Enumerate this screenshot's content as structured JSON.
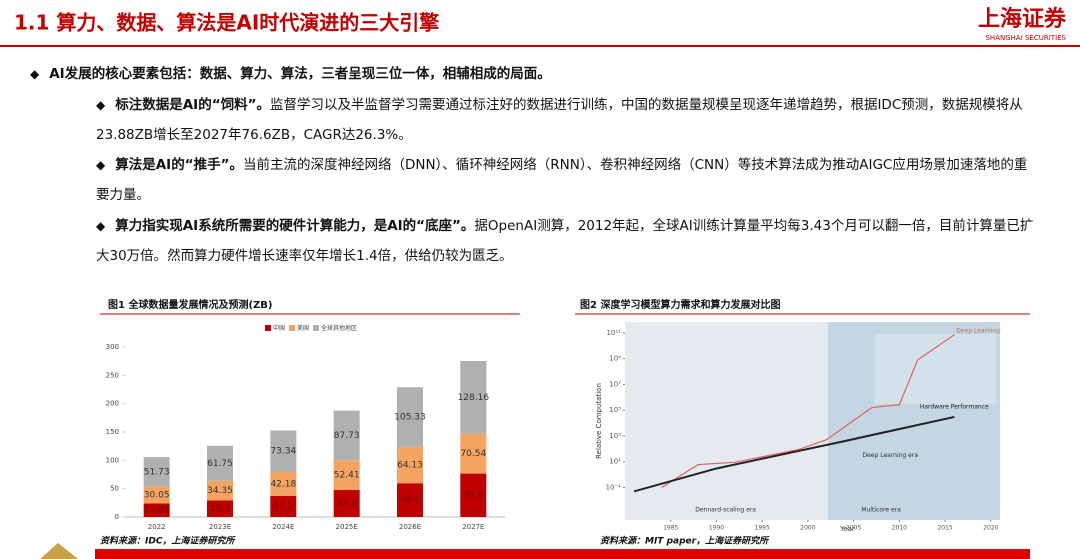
{
  "header": {
    "title": "1.1 算力、数据、算法是AI时代演进的三大引擎",
    "logo": "上海证券",
    "logo_sub": "SHANGHAI SECURITIES"
  },
  "intro": "AI发展的核心要素包括：数据、算力、算法，三者呈现三位一体，相辅相成的局面。",
  "points": [
    {
      "lead": "标注数据是AI的“饲料”。",
      "text": "监督学习以及半监督学习需要通过标注好的数据进行训练，中国的数据量规模呈现逐年递增趋势，根据IDC预测，数据规模将从23.88ZB增长至2027年76.6ZB，CAGR达26.3%。"
    },
    {
      "lead": "算法是AI的“推手”。",
      "text": "当前主流的深度神经网络（DNN）、循环神经网络（RNN）、卷积神经网络（CNN）等技术算法成为推动AIGC应用场景加速落地的重要力量。"
    },
    {
      "lead": "算力指实现AI系统所需要的硬件计算能力，是AI的“底座”。",
      "text": "据OpenAI测算，2012年起，全球AI训练计算量平均每3.43个月可以翻一倍，目前计算量已扩大30万倍。然而算力硬件增长速率仅年增长1.4倍，供给仍较为匮乏。"
    }
  ],
  "chart_data": [
    {
      "type": "bar",
      "stacked": true,
      "title": "图1 全球数据量发展情况及预测(ZB)",
      "categories": [
        "2022",
        "2023E",
        "2024E",
        "2025E",
        "2026E",
        "2027E"
      ],
      "series": [
        {
          "name": "中国",
          "color": "#c00000",
          "values": [
            23.88,
            29.5,
            37.2,
            47.6,
            59.6,
            76.6
          ]
        },
        {
          "name": "美国",
          "color": "#f4a460",
          "values": [
            30.05,
            34.35,
            42.18,
            52.41,
            64.13,
            70.54
          ]
        },
        {
          "name": "全球其他地区",
          "color": "#b0b0b0",
          "values": [
            51.73,
            61.75,
            73.34,
            87.73,
            105.33,
            128.16
          ]
        }
      ],
      "ylim": [
        0,
        300
      ],
      "yticks": [
        0,
        50,
        100,
        150,
        200,
        250,
        300
      ],
      "legend": "top",
      "source": "资料来源：IDC，上海证券研究所"
    },
    {
      "type": "line",
      "log_y": true,
      "title": "图2 深度学习模型算力需求和算力发展对比图",
      "xlabel": "Year",
      "ylabel": "Relative Computation",
      "xlim": [
        1980,
        2021
      ],
      "xticks": [
        1985,
        1990,
        1995,
        2000,
        2005,
        2010,
        2015,
        2020
      ],
      "ylim": [
        0.0003,
        700000000000
      ],
      "yticks": [
        {
          "value": 0.1,
          "label": "10⁻¹"
        },
        {
          "value": 10,
          "label": "10¹"
        },
        {
          "value": 1000,
          "label": "10³"
        },
        {
          "value": 100000,
          "label": "10⁵"
        },
        {
          "value": 10000000,
          "label": "10⁷"
        },
        {
          "value": 1000000000,
          "label": "10⁹"
        },
        {
          "value": 100000000000,
          "label": "10¹¹"
        }
      ],
      "series": [
        {
          "name": "Deep Learning",
          "color": "#e06060",
          "x": [
            1984,
            1988,
            1992,
            1999,
            2002,
            2007,
            2010,
            2012,
            2016
          ],
          "values": [
            0.1,
            6,
            9,
            90,
            500,
            160000,
            270000,
            800000000,
            70000000000
          ]
        },
        {
          "name": "Hardware Performance",
          "color": "#222222",
          "x": [
            1981,
            1990,
            2004,
            2016
          ],
          "values": [
            0.05,
            3,
            400,
            30000
          ]
        }
      ],
      "annotations": [
        "Dennard-scaling era",
        "Multicore era",
        "Deep Learning era"
      ],
      "source": "资料来源：MIT paper，上海证券研究所"
    }
  ]
}
